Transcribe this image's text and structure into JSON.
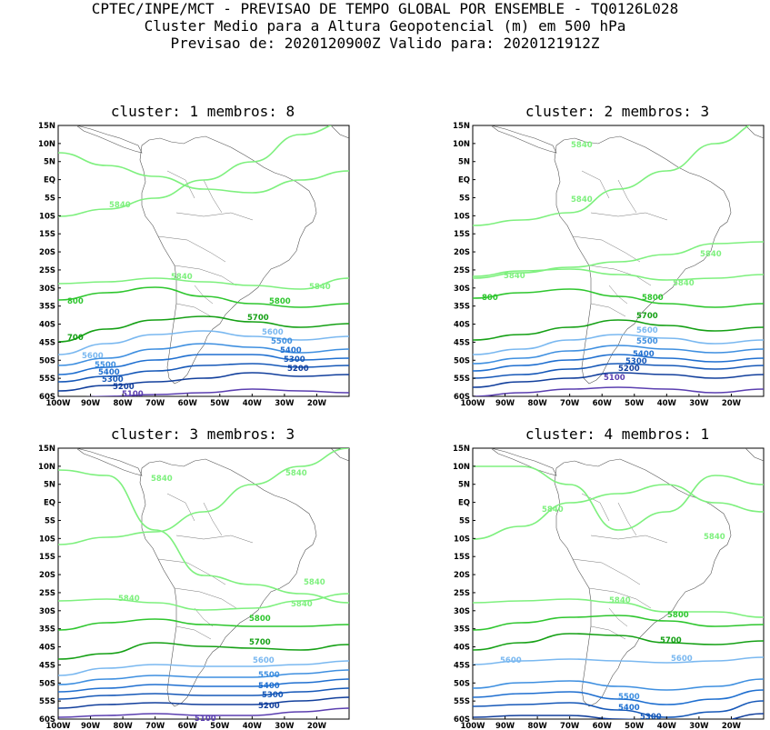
{
  "header": {
    "line1": "CPTEC/INPE/MCT - PREVISAO DE TEMPO GLOBAL POR ENSEMBLE - TQ0126L028",
    "line2": "Cluster Medio para a Altura Geopotencial (m) em 500 hPa",
    "line3": "Previsao de: 2020120900Z    Valido para: 2020121912Z"
  },
  "axes": {
    "lat_labels": [
      "15N",
      "10N",
      "5N",
      "EQ",
      "5S",
      "10S",
      "15S",
      "20S",
      "25S",
      "30S",
      "35S",
      "40S",
      "45S",
      "50S",
      "55S",
      "60S"
    ],
    "lon_labels": [
      "100W",
      "90W",
      "80W",
      "70W",
      "60W",
      "50W",
      "40W",
      "30W",
      "20W"
    ]
  },
  "colors": {
    "5840": "#7ef07e",
    "5800": "#2ec62e",
    "5700": "#15a015",
    "5600": "#7ab8f0",
    "5500": "#3e8fe0",
    "5400": "#1f6fd0",
    "5300": "#1658b8",
    "5200": "#123f9c",
    "5100": "#5b3fb0"
  },
  "panels": [
    {
      "title": "cluster:  1   membros:  8",
      "labels": [
        {
          "text": "5840",
          "c": "5840"
        },
        {
          "text": "5840",
          "c": "5840"
        },
        {
          "text": "5840",
          "c": "5840"
        },
        {
          "text": "800",
          "c": "5800"
        },
        {
          "text": "5800",
          "c": "5800"
        },
        {
          "text": "700",
          "c": "5700"
        },
        {
          "text": "5700",
          "c": "5700"
        },
        {
          "text": "5600",
          "c": "5600"
        },
        {
          "text": "5600",
          "c": "5600"
        },
        {
          "text": "5500",
          "c": "5500"
        },
        {
          "text": "5500",
          "c": "5500"
        },
        {
          "text": "5400",
          "c": "5400"
        },
        {
          "text": "5400",
          "c": "5400"
        },
        {
          "text": "5300",
          "c": "5300"
        },
        {
          "text": "5300",
          "c": "5300"
        },
        {
          "text": "5200",
          "c": "5200"
        },
        {
          "text": "5200",
          "c": "5200"
        },
        {
          "text": "5100",
          "c": "5100"
        }
      ]
    },
    {
      "title": "cluster:  2   membros:  3",
      "labels": [
        {
          "text": "5840",
          "c": "5840"
        },
        {
          "text": "5840",
          "c": "5840"
        },
        {
          "text": "5840",
          "c": "5840"
        },
        {
          "text": "5840",
          "c": "5840"
        },
        {
          "text": "5840",
          "c": "5840"
        },
        {
          "text": "800",
          "c": "5800"
        },
        {
          "text": "5800",
          "c": "5800"
        },
        {
          "text": "5700",
          "c": "5700"
        },
        {
          "text": "5600",
          "c": "5600"
        },
        {
          "text": "5500",
          "c": "5500"
        },
        {
          "text": "5400",
          "c": "5400"
        },
        {
          "text": "5300",
          "c": "5300"
        },
        {
          "text": "5200",
          "c": "5200"
        },
        {
          "text": "5100",
          "c": "5100"
        }
      ]
    },
    {
      "title": "cluster:  3   membros:  3",
      "labels": [
        {
          "text": "5840",
          "c": "5840"
        },
        {
          "text": "5840",
          "c": "5840"
        },
        {
          "text": "5840",
          "c": "5840"
        },
        {
          "text": "5840",
          "c": "5840"
        },
        {
          "text": "5840",
          "c": "5840"
        },
        {
          "text": "5800",
          "c": "5800"
        },
        {
          "text": "5700",
          "c": "5700"
        },
        {
          "text": "5600",
          "c": "5600"
        },
        {
          "text": "5500",
          "c": "5500"
        },
        {
          "text": "5400",
          "c": "5400"
        },
        {
          "text": "5300",
          "c": "5300"
        },
        {
          "text": "5200",
          "c": "5200"
        },
        {
          "text": "5100",
          "c": "5100"
        }
      ]
    },
    {
      "title": "cluster:  4   membros:  1",
      "labels": [
        {
          "text": "5840",
          "c": "5840"
        },
        {
          "text": "5840",
          "c": "5840"
        },
        {
          "text": "5840",
          "c": "5840"
        },
        {
          "text": "5800",
          "c": "5800"
        },
        {
          "text": "5700",
          "c": "5700"
        },
        {
          "text": "5600",
          "c": "5600"
        },
        {
          "text": "5600",
          "c": "5600"
        },
        {
          "text": "5500",
          "c": "5500"
        },
        {
          "text": "5400",
          "c": "5400"
        },
        {
          "text": "5300",
          "c": "5300"
        }
      ]
    }
  ]
}
